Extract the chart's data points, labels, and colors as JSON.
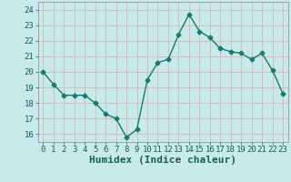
{
  "x": [
    0,
    1,
    2,
    3,
    4,
    5,
    6,
    7,
    8,
    9,
    10,
    11,
    12,
    13,
    14,
    15,
    16,
    17,
    18,
    19,
    20,
    21,
    22,
    23
  ],
  "y": [
    20.0,
    19.2,
    18.5,
    18.5,
    18.5,
    18.0,
    17.3,
    17.0,
    15.8,
    16.3,
    19.5,
    20.6,
    20.8,
    22.4,
    23.7,
    22.6,
    22.2,
    21.5,
    21.3,
    21.2,
    20.8,
    21.2,
    20.1,
    18.6
  ],
  "line_color": "#1a7a6e",
  "marker": "D",
  "markersize": 2.5,
  "linewidth": 1.0,
  "bg_color": "#c8eaea",
  "grid_color": "#d4b8b8",
  "xlabel": "Humidex (Indice chaleur)",
  "ylim": [
    15.5,
    24.5
  ],
  "yticks": [
    16,
    17,
    18,
    19,
    20,
    21,
    22,
    23,
    24
  ],
  "xticks": [
    0,
    1,
    2,
    3,
    4,
    5,
    6,
    7,
    8,
    9,
    10,
    11,
    12,
    13,
    14,
    15,
    16,
    17,
    18,
    19,
    20,
    21,
    22,
    23
  ],
  "tick_fontsize": 6.5,
  "xlabel_fontsize": 8,
  "tick_color": "#1a5c5a"
}
